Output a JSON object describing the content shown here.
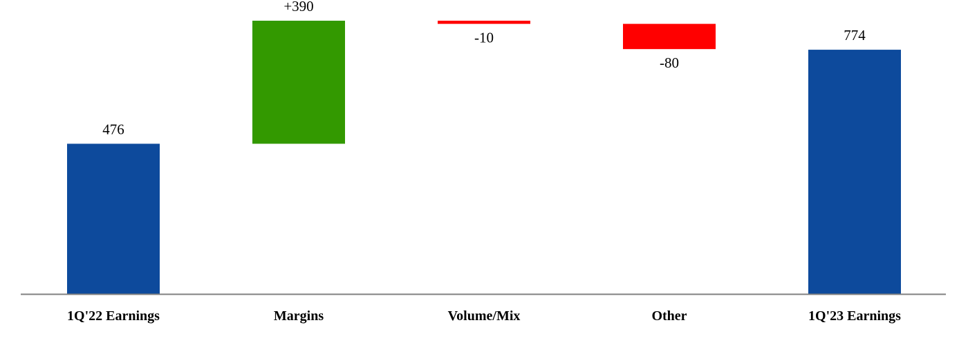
{
  "chart_data": {
    "type": "waterfall",
    "categories": [
      "1Q'22 Earnings",
      "Margins",
      "Volume/Mix",
      "Other",
      "1Q'23 Earnings"
    ],
    "values": [
      476,
      390,
      -10,
      -80,
      774
    ],
    "labels": [
      "476",
      "+390",
      "-10",
      "-80",
      "774"
    ],
    "kinds": [
      "total",
      "increase",
      "decrease",
      "decrease",
      "total"
    ],
    "colors": {
      "total": "#0d4a9c",
      "increase": "#339900",
      "decrease": "#ff0000",
      "axis": "#808080"
    },
    "ylim": [
      0,
      866
    ],
    "grid": false
  }
}
